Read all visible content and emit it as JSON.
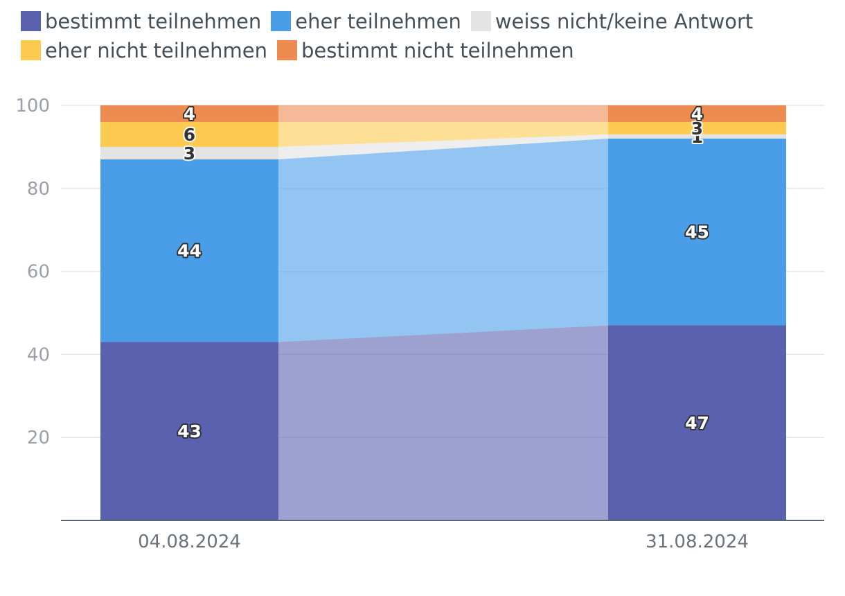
{
  "chart_data": {
    "type": "bar",
    "stacked": true,
    "connectors": true,
    "categories": [
      "04.08.2024",
      "31.08.2024"
    ],
    "ylim": [
      0,
      100
    ],
    "yticks": [
      20,
      40,
      60,
      80,
      100
    ],
    "grid": true,
    "legend_position": "top",
    "series": [
      {
        "name": "bestimmt teilnehmen",
        "values": [
          43,
          47
        ],
        "color": "#5a62b0",
        "label_color": "#ffffff"
      },
      {
        "name": "eher teilnehmen",
        "values": [
          44,
          45
        ],
        "color": "#4a9ee8",
        "label_color": "#ffffff"
      },
      {
        "name": "weiss nicht/keine Antwort",
        "values": [
          3,
          1
        ],
        "color": "#e3e3e3",
        "label_color": "#333333"
      },
      {
        "name": "eher nicht teilnehmen",
        "values": [
          6,
          3
        ],
        "color": "#fdca50",
        "label_color": "#333333"
      },
      {
        "name": "bestimmt nicht teilnehmen",
        "values": [
          4,
          4
        ],
        "color": "#ee8b51",
        "label_color": "#ffffff"
      }
    ]
  }
}
